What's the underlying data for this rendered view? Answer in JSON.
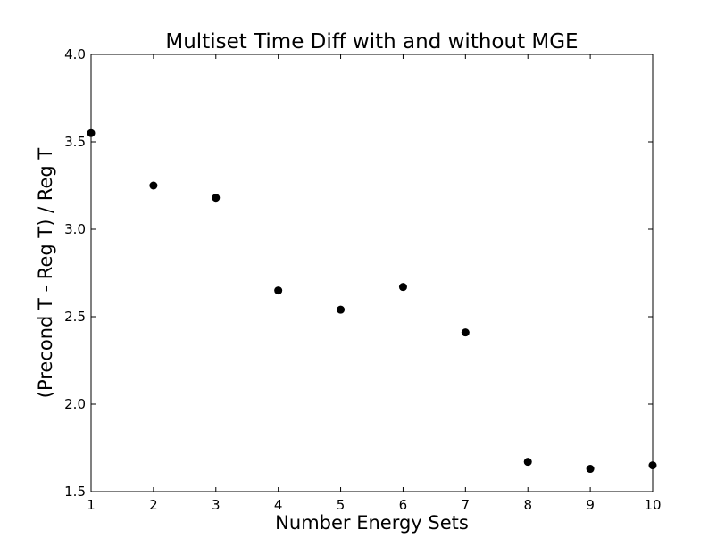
{
  "chart_data": {
    "type": "scatter",
    "title": "Multiset Time Diff with and without MGE",
    "xlabel": "Number Energy Sets",
    "ylabel": "(Precond T - Reg T) / Reg T",
    "xlim": [
      1,
      10
    ],
    "ylim": [
      1.5,
      4.0
    ],
    "x_ticks": [
      1,
      2,
      3,
      4,
      5,
      6,
      7,
      8,
      9,
      10
    ],
    "y_ticks": [
      1.5,
      2.0,
      2.5,
      3.0,
      3.5,
      4.0
    ],
    "y_tick_labels": [
      "1.5",
      "2.0",
      "2.5",
      "3.0",
      "3.5",
      "4.0"
    ],
    "grid": false,
    "marker_color": "#000000",
    "x": [
      1,
      2,
      3,
      4,
      5,
      6,
      7,
      8,
      9,
      10
    ],
    "y": [
      3.55,
      3.25,
      3.18,
      2.65,
      2.54,
      2.67,
      2.41,
      1.67,
      1.63,
      1.65
    ]
  }
}
